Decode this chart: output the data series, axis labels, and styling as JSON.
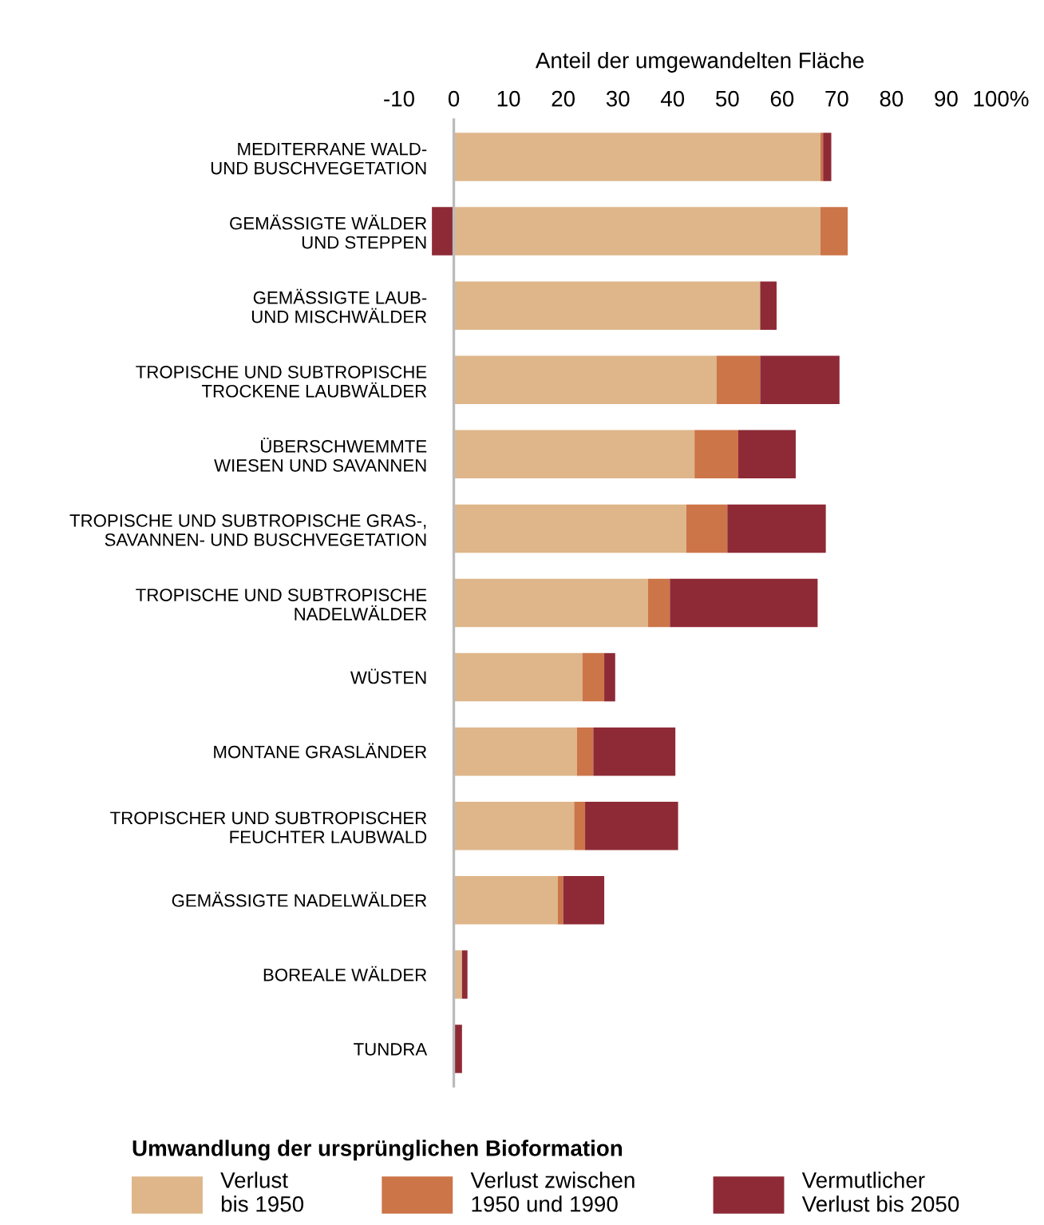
{
  "chart_data": {
    "type": "bar",
    "orientation": "horizontal",
    "stacked": true,
    "xlabel": "Anteil der umgewandelten Fläche",
    "legend_title": "Umwandlung der ursprünglichen Bioformation",
    "categories": [
      "MEDITERRANE WALD-\nUND BUSCHVEGETATION",
      "GEMÄSSIGTE WÄLDER\nUND STEPPEN",
      "GEMÄSSIGTE LAUB-\nUND MISCHWÄLDER",
      "TROPISCHE UND SUBTROPISCHE\nTROCKENE LAUBWÄLDER",
      "ÜBERSCHWEMMTE\nWIESEN UND SAVANNEN",
      "TROPISCHE UND SUBTROPISCHE GRAS-,\nSAVANNEN- UND BUSCHVEGETATION",
      "TROPISCHE UND SUBTROPISCHE\nNADELWÄLDER",
      "WÜSTEN",
      "MONTANE GRASLÄNDER",
      "TROPISCHER UND SUBTROPISCHER\nFEUCHTER LAUBWALD",
      "GEMÄSSIGTE NADELWÄLDER",
      "BOREALE WÄLDER",
      "TUNDRA"
    ],
    "series": [
      {
        "name": "Verlust\nbis 1950",
        "color": "#deb68a",
        "values": [
          67,
          67,
          56,
          48,
          44,
          42.5,
          35.5,
          23.5,
          22.5,
          22,
          19,
          1.5,
          0
        ]
      },
      {
        "name": "Verlust zwischen\n1950 und 1990",
        "color": "#cc7549",
        "values": [
          0.5,
          5,
          0,
          8,
          8,
          7.5,
          4,
          4,
          3,
          2,
          1,
          0,
          0
        ]
      },
      {
        "name": "Vermutlicher\nVerlust bis 2050",
        "color": "#8e2a36",
        "values": [
          1.5,
          -4,
          3,
          14.5,
          10.5,
          18,
          27,
          2,
          15,
          17,
          7.5,
          1,
          1.5
        ]
      }
    ],
    "xlim": [
      -10,
      100
    ],
    "xticks": [
      -10,
      0,
      10,
      20,
      30,
      40,
      50,
      60,
      70,
      80,
      90,
      {
        "value": 100,
        "label": "100%"
      }
    ],
    "grid": false,
    "legend": "bottom"
  }
}
